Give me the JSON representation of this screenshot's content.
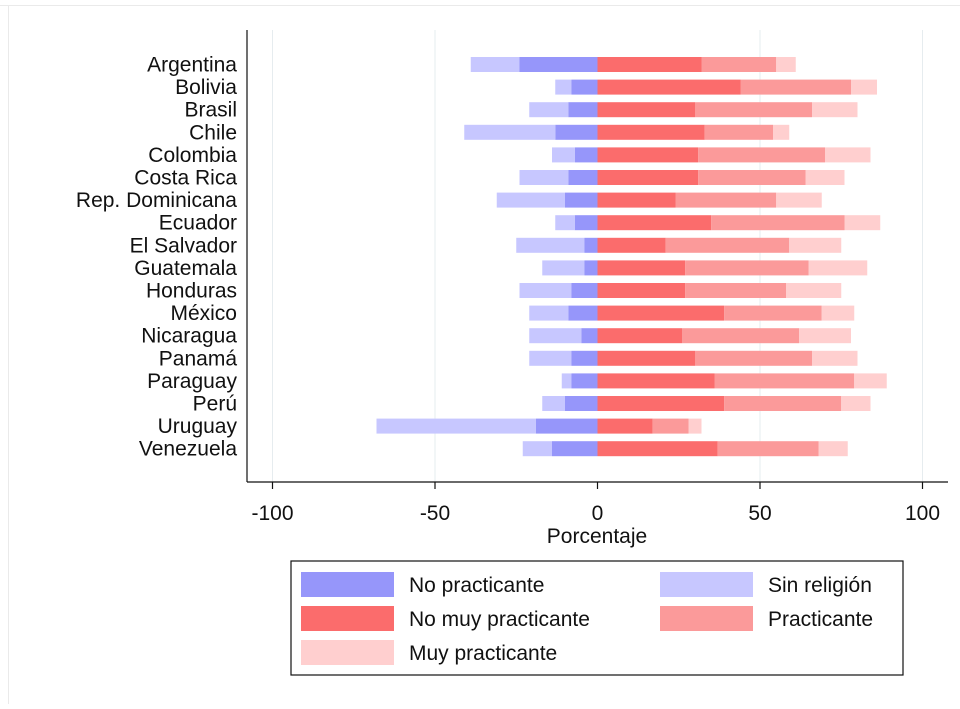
{
  "chart_data": {
    "type": "bar",
    "orientation": "horizontal",
    "stacked": "diverging",
    "categories": [
      "Argentina",
      "Bolivia",
      "Brasil",
      "Chile",
      "Colombia",
      "Costa Rica",
      "Rep. Dominicana",
      "Ecuador",
      "El Salvador",
      "Guatemala",
      "Honduras",
      "México",
      "Nicaragua",
      "Panamá",
      "Paraguay",
      "Perú",
      "Uruguay",
      "Venezuela"
    ],
    "series": [
      {
        "name": "Sin religión",
        "color": "#c7c7ff",
        "values": [
          -15,
          -5,
          -12,
          -28,
          -7,
          -15,
          -21,
          -6,
          -21,
          -13,
          -16,
          -12,
          -16,
          -13,
          -3,
          -7,
          -49,
          -9
        ]
      },
      {
        "name": "No practicante",
        "color": "#9696fa",
        "values": [
          -24,
          -8,
          -9,
          -13,
          -7,
          -9,
          -10,
          -7,
          -4,
          -4,
          -8,
          -9,
          -5,
          -8,
          -8,
          -10,
          -19,
          -14
        ]
      },
      {
        "name": "No muy practicante",
        "color": "#fb6c6c",
        "values": [
          32,
          44,
          30,
          33,
          31,
          31,
          24,
          35,
          21,
          27,
          27,
          39,
          26,
          30,
          36,
          39,
          17,
          37
        ]
      },
      {
        "name": "Practicante",
        "color": "#fb9a9a",
        "values": [
          23,
          34,
          36,
          21,
          39,
          33,
          31,
          41,
          38,
          38,
          31,
          30,
          36,
          36,
          43,
          36,
          11,
          31
        ]
      },
      {
        "name": "Muy practicante",
        "color": "#ffcfcf",
        "values": [
          6,
          8,
          14,
          5,
          14,
          12,
          14,
          11,
          16,
          18,
          17,
          10,
          16,
          14,
          10,
          9,
          4,
          9
        ]
      }
    ],
    "xlabel": "Porcentaje",
    "xticks": [
      -100,
      -50,
      0,
      50,
      100
    ],
    "xlim": [
      -107,
      107
    ],
    "grid": "vertical",
    "legend": {
      "placement": "bottom",
      "rows": [
        [
          "No practicante",
          "Sin religión"
        ],
        [
          "No muy practicante",
          "Practicante"
        ],
        [
          "Muy practicante"
        ]
      ]
    }
  }
}
